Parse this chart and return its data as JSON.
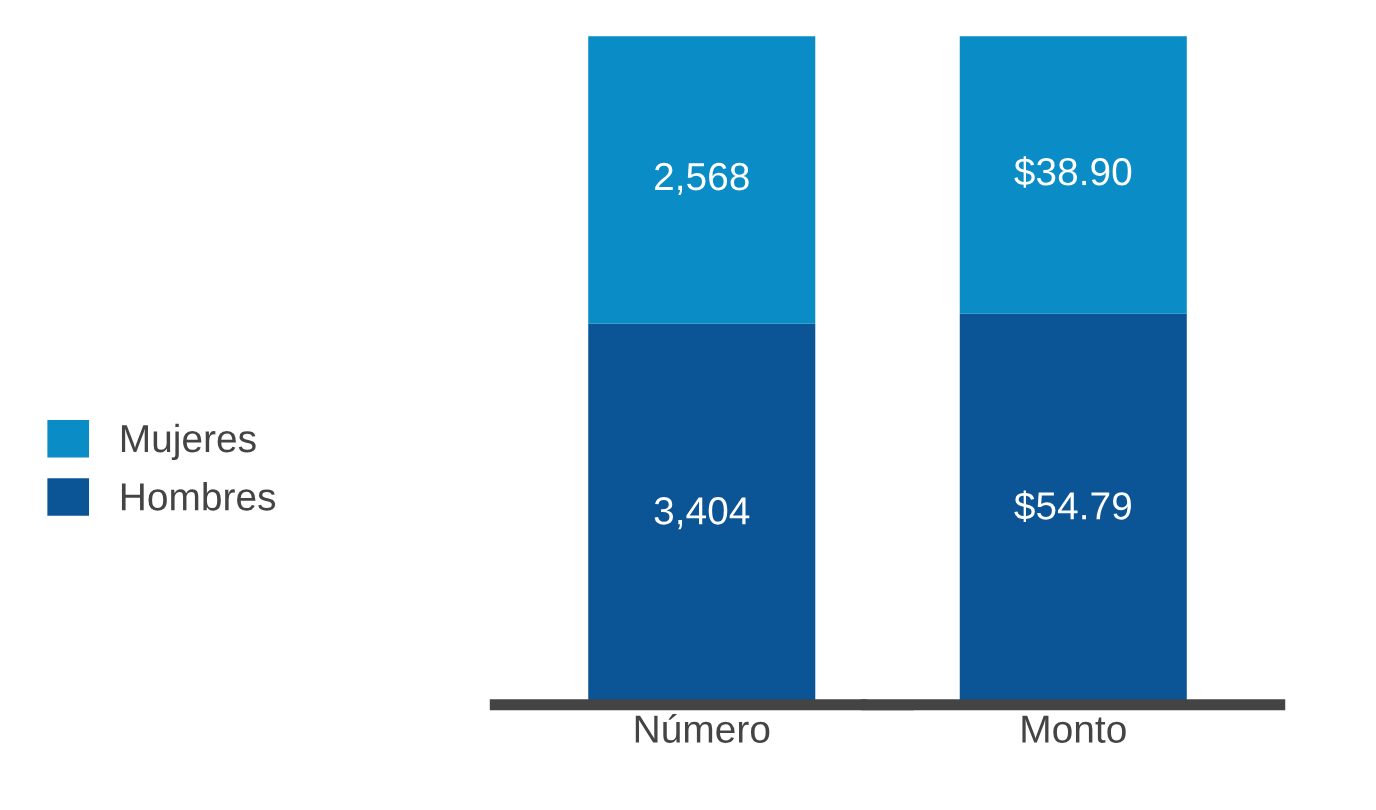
{
  "chart_data": [
    {
      "type": "bar",
      "stacked": true,
      "categories": [
        "Número"
      ],
      "tick_labels": "x",
      "legend": "left",
      "series": [
        {
          "name": "Hombres",
          "color": "#0b5596",
          "values": [
            3404
          ],
          "value_labels": [
            "3,404"
          ]
        },
        {
          "name": "Mujeres",
          "color": "#0a8cc6",
          "values": [
            2568
          ],
          "value_labels": [
            "2,568"
          ]
        }
      ]
    },
    {
      "type": "bar",
      "stacked": true,
      "categories": [
        "Monto"
      ],
      "tick_labels": "x",
      "series": [
        {
          "color": "#0b5596",
          "values": [
            54.79
          ],
          "value_labels": [
            "$54.79"
          ]
        },
        {
          "color": "#0a8cc6",
          "values": [
            38.9
          ],
          "value_labels": [
            "$38.90"
          ]
        }
      ]
    }
  ]
}
